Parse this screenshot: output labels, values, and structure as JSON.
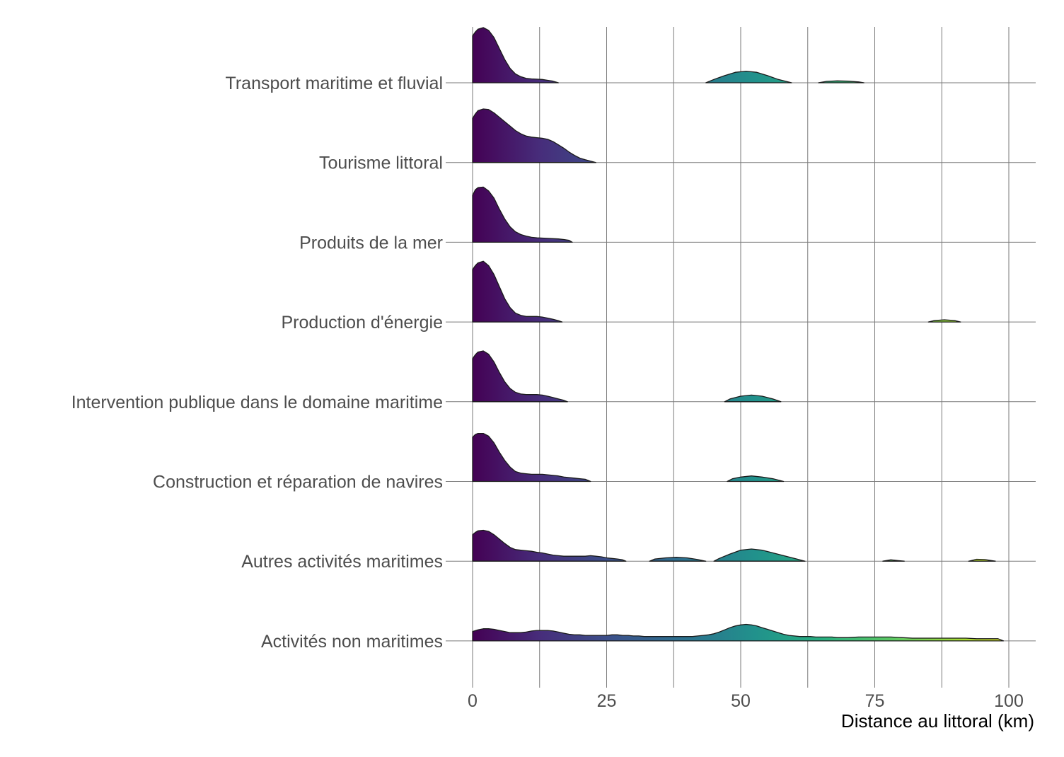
{
  "chart_data": {
    "type": "ridgeline",
    "xlabel": "Distance au littoral (km)",
    "xlim": [
      0,
      105
    ],
    "x_ticks": [
      0,
      25,
      50,
      75,
      100
    ],
    "fill_gradient": "viridis by distance",
    "grid": true,
    "categories": [
      "Transport maritime et fluvial",
      "Tourisme littoral",
      "Produits de la mer",
      "Production d'énergie",
      "Intervention publique dans le domaine maritime",
      "Construction et réparation de navires",
      "Autres activités maritimes",
      "Activités non maritimes"
    ],
    "series": [
      {
        "category": "Transport maritime et fluvial",
        "segments": [
          {
            "x": [
              0,
              0.5,
              1,
              2,
              3,
              4,
              5,
              6,
              7,
              8,
              9,
              10,
              11,
              12,
              13,
              14,
              15,
              16
            ],
            "y": [
              0.85,
              0.92,
              0.97,
              1.0,
              0.95,
              0.82,
              0.62,
              0.42,
              0.26,
              0.16,
              0.11,
              0.08,
              0.07,
              0.065,
              0.06,
              0.045,
              0.03,
              0
            ]
          },
          {
            "x": [
              43.5,
              45,
              47,
              49,
              51,
              53,
              55,
              57,
              59.5
            ],
            "y": [
              0,
              0.06,
              0.13,
              0.19,
              0.21,
              0.19,
              0.13,
              0.06,
              0
            ]
          },
          {
            "x": [
              64.5,
              66,
              68,
              70,
              72,
              73
            ],
            "y": [
              0,
              0.025,
              0.035,
              0.03,
              0.015,
              0
            ]
          }
        ]
      },
      {
        "category": "Tourisme littoral",
        "segments": [
          {
            "x": [
              0,
              0.5,
              1,
              2,
              3,
              4,
              5,
              6,
              7,
              8,
              9,
              10,
              11,
              12,
              13,
              14,
              15,
              16,
              17,
              18,
              19,
              20,
              21,
              22,
              23
            ],
            "y": [
              0.8,
              0.88,
              0.94,
              0.97,
              0.96,
              0.9,
              0.82,
              0.74,
              0.66,
              0.58,
              0.52,
              0.48,
              0.46,
              0.45,
              0.44,
              0.42,
              0.38,
              0.32,
              0.26,
              0.19,
              0.13,
              0.08,
              0.05,
              0.025,
              0
            ]
          }
        ]
      },
      {
        "category": "Produits de la mer",
        "segments": [
          {
            "x": [
              0,
              0.5,
              1,
              2,
              3,
              4,
              5,
              6,
              7,
              8,
              9,
              10,
              11,
              12,
              13,
              14,
              15,
              16,
              17,
              18,
              18.6
            ],
            "y": [
              0.85,
              0.95,
              0.99,
              1.0,
              0.93,
              0.8,
              0.6,
              0.42,
              0.28,
              0.19,
              0.14,
              0.11,
              0.09,
              0.08,
              0.075,
              0.07,
              0.065,
              0.06,
              0.05,
              0.035,
              0
            ]
          }
        ]
      },
      {
        "category": "Production d'énergie",
        "segments": [
          {
            "x": [
              0,
              0.5,
              1,
              2,
              3,
              4,
              5,
              6,
              7,
              8,
              9,
              10,
              11,
              12,
              13,
              14,
              15,
              16,
              16.7
            ],
            "y": [
              0.95,
              1.02,
              1.07,
              1.1,
              1.02,
              0.86,
              0.64,
              0.42,
              0.26,
              0.16,
              0.12,
              0.1,
              0.1,
              0.1,
              0.09,
              0.07,
              0.05,
              0.025,
              0
            ]
          },
          {
            "x": [
              85,
              86,
              88,
              90,
              91
            ],
            "y": [
              0,
              0.025,
              0.04,
              0.025,
              0
            ]
          }
        ]
      },
      {
        "category": "Intervention publique dans le domaine maritime",
        "segments": [
          {
            "x": [
              0,
              0.5,
              1,
              2,
              3,
              4,
              5,
              6,
              7,
              8,
              9,
              10,
              11,
              12,
              13,
              14,
              15,
              16,
              17,
              17.7
            ],
            "y": [
              0.78,
              0.85,
              0.9,
              0.92,
              0.86,
              0.72,
              0.53,
              0.36,
              0.24,
              0.17,
              0.14,
              0.13,
              0.13,
              0.13,
              0.12,
              0.1,
              0.075,
              0.05,
              0.025,
              0
            ]
          },
          {
            "x": [
              47,
              48,
              50,
              52,
              54,
              56,
              57.5
            ],
            "y": [
              0,
              0.05,
              0.1,
              0.12,
              0.1,
              0.05,
              0
            ]
          }
        ]
      },
      {
        "category": "Construction et réparation de navires",
        "segments": [
          {
            "x": [
              0,
              0.5,
              1,
              2,
              3,
              4,
              5,
              6,
              7,
              8,
              9,
              10,
              11,
              12,
              13,
              14,
              15,
              16,
              17,
              18,
              19,
              20,
              21,
              22
            ],
            "y": [
              0.8,
              0.85,
              0.87,
              0.87,
              0.82,
              0.7,
              0.53,
              0.38,
              0.26,
              0.18,
              0.15,
              0.14,
              0.13,
              0.13,
              0.13,
              0.12,
              0.11,
              0.1,
              0.08,
              0.07,
              0.06,
              0.05,
              0.04,
              0
            ]
          },
          {
            "x": [
              47.5,
              48.5,
              50,
              52,
              54,
              56,
              58
            ],
            "y": [
              0,
              0.05,
              0.08,
              0.1,
              0.08,
              0.05,
              0
            ]
          }
        ]
      },
      {
        "category": "Autres activités maritimes",
        "segments": [
          {
            "x": [
              0,
              0.5,
              1,
              2,
              3,
              4,
              5,
              6,
              7,
              8,
              9,
              10,
              11,
              12,
              13,
              14,
              15,
              16,
              17,
              18,
              19,
              20,
              21,
              22,
              23,
              24,
              25,
              26,
              27,
              28,
              28.6
            ],
            "y": [
              0.48,
              0.52,
              0.55,
              0.56,
              0.54,
              0.48,
              0.4,
              0.32,
              0.25,
              0.21,
              0.2,
              0.19,
              0.18,
              0.16,
              0.15,
              0.13,
              0.11,
              0.1,
              0.09,
              0.09,
              0.09,
              0.09,
              0.09,
              0.1,
              0.09,
              0.08,
              0.06,
              0.05,
              0.04,
              0.025,
              0
            ]
          },
          {
            "x": [
              33,
              34,
              36,
              38,
              40,
              42,
              43.5
            ],
            "y": [
              0,
              0.04,
              0.06,
              0.07,
              0.06,
              0.03,
              0
            ]
          },
          {
            "x": [
              45,
              46,
              48,
              50,
              52,
              54,
              56,
              58,
              60,
              62
            ],
            "y": [
              0,
              0.05,
              0.13,
              0.2,
              0.22,
              0.2,
              0.15,
              0.1,
              0.05,
              0
            ]
          },
          {
            "x": [
              76.5,
              78,
              80.5
            ],
            "y": [
              0,
              0.025,
              0
            ]
          },
          {
            "x": [
              92.5,
              94,
              95.5,
              97.5
            ],
            "y": [
              0,
              0.035,
              0.03,
              0
            ]
          }
        ]
      },
      {
        "category": "Activités non maritimes",
        "segments": [
          {
            "x": [
              0,
              1,
              2,
              3,
              4,
              5,
              6,
              7,
              8,
              9,
              10,
              11,
              12,
              13,
              14,
              15,
              16,
              17,
              18,
              19,
              20,
              21,
              22,
              23,
              24,
              25,
              26,
              27,
              28,
              29,
              30,
              31,
              32,
              33,
              34,
              35,
              36,
              37,
              38,
              39,
              40,
              41,
              42,
              43,
              44,
              45,
              46,
              47,
              48,
              49,
              50,
              51,
              52,
              53,
              54,
              55,
              56,
              57,
              58,
              59,
              60,
              61,
              62,
              63,
              64,
              65,
              66,
              67,
              68,
              69,
              70,
              72,
              74,
              76,
              78,
              80,
              82,
              84,
              86,
              88,
              90,
              92,
              94,
              96,
              98,
              99
            ],
            "y": [
              0.17,
              0.2,
              0.22,
              0.22,
              0.21,
              0.19,
              0.17,
              0.15,
              0.15,
              0.15,
              0.16,
              0.18,
              0.19,
              0.19,
              0.19,
              0.18,
              0.16,
              0.14,
              0.12,
              0.11,
              0.11,
              0.1,
              0.1,
              0.1,
              0.1,
              0.1,
              0.11,
              0.11,
              0.1,
              0.1,
              0.09,
              0.09,
              0.08,
              0.08,
              0.08,
              0.08,
              0.08,
              0.08,
              0.08,
              0.08,
              0.08,
              0.08,
              0.09,
              0.1,
              0.11,
              0.13,
              0.16,
              0.2,
              0.24,
              0.27,
              0.29,
              0.3,
              0.29,
              0.27,
              0.24,
              0.21,
              0.18,
              0.15,
              0.12,
              0.1,
              0.09,
              0.08,
              0.08,
              0.08,
              0.07,
              0.07,
              0.07,
              0.07,
              0.06,
              0.06,
              0.06,
              0.07,
              0.07,
              0.07,
              0.07,
              0.06,
              0.05,
              0.05,
              0.05,
              0.05,
              0.05,
              0.05,
              0.04,
              0.04,
              0.04,
              0
            ]
          }
        ]
      }
    ]
  }
}
